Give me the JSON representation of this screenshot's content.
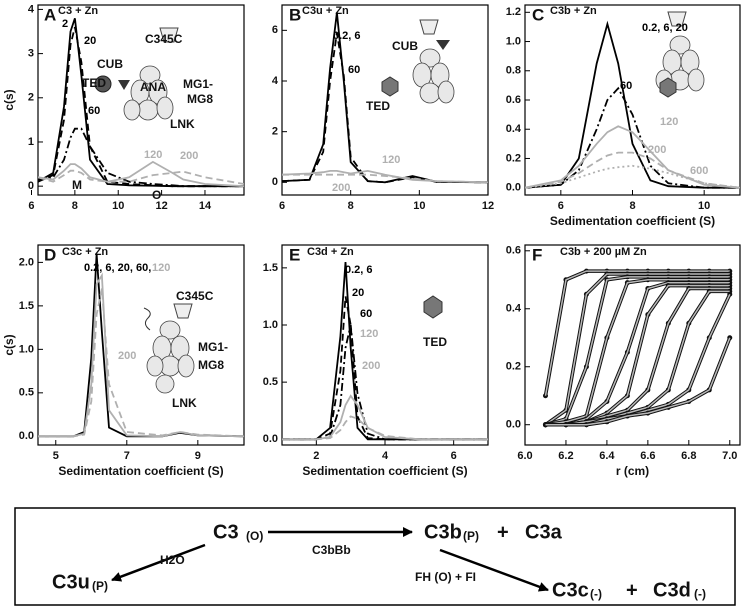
{
  "chart_data": [
    {
      "type": "line",
      "letter": "A",
      "title": "C3 + Zn",
      "y_label": "c(s)",
      "xlim": [
        6.3,
        15.8
      ],
      "xticks": [
        6,
        8,
        10,
        12,
        14
      ],
      "ylim": [
        -0.2,
        4.1
      ],
      "yticks": [
        0,
        1,
        2,
        3,
        4
      ],
      "x": [
        6.3,
        7,
        7.5,
        7.8,
        8,
        8.3,
        8.7,
        9.5,
        10.5,
        11.6,
        12.5,
        13,
        14,
        15.8
      ],
      "series": [
        {
          "name": "2",
          "color": "#000000",
          "style": "solid",
          "values": [
            0.1,
            0.3,
            1.8,
            3.5,
            3.8,
            2.5,
            0.6,
            0.05,
            0.02,
            0.01,
            0,
            0,
            0,
            0
          ]
        },
        {
          "name": "20",
          "color": "#000000",
          "style": "dashed",
          "values": [
            0.1,
            0.25,
            1.5,
            3.2,
            3.6,
            2.8,
            0.9,
            0.1,
            0.05,
            0.02,
            0,
            0,
            0,
            0
          ]
        },
        {
          "name": "60",
          "color": "#000000",
          "style": "dashdot",
          "values": [
            0.15,
            0.2,
            0.6,
            1.1,
            1.3,
            1.3,
            0.9,
            0.3,
            0.1,
            0.05,
            0.02,
            0,
            0,
            0
          ]
        },
        {
          "name": "120",
          "color": "#b0b0b0",
          "style": "solid",
          "values": [
            0.2,
            0.15,
            0.35,
            0.5,
            0.5,
            0.4,
            0.2,
            0.1,
            0.2,
            0.55,
            0.3,
            0.15,
            0.05,
            0
          ]
        },
        {
          "name": "200",
          "color": "#b0b0b0",
          "style": "dashed",
          "values": [
            0.2,
            0.1,
            0.25,
            0.35,
            0.35,
            0.3,
            0.15,
            0.1,
            0.1,
            0.25,
            0.3,
            0.33,
            0.2,
            0.05
          ]
        }
      ],
      "annotations": [
        "CUB",
        "TED",
        "ANA",
        "C345C",
        "MG1-",
        "MG8",
        "LNK",
        "M",
        "O"
      ]
    },
    {
      "type": "line",
      "letter": "B",
      "title": "C3u + Zn",
      "xlim": [
        6,
        12
      ],
      "xticks": [
        6,
        8,
        10,
        12
      ],
      "ylim": [
        -0.5,
        7
      ],
      "yticks": [
        0,
        2,
        4,
        6
      ],
      "x": [
        6,
        6.8,
        7.2,
        7.4,
        7.6,
        7.8,
        8.0,
        8.5,
        9.0,
        9.8,
        10.5,
        12
      ],
      "series": [
        {
          "name": "0.2, 6",
          "color": "#000000",
          "style": "solid",
          "values": [
            0.05,
            0.1,
            1.5,
            4.5,
            6.7,
            4.0,
            0.8,
            0.05,
            0,
            0.25,
            0.02,
            0
          ]
        },
        {
          "name": "60",
          "color": "#000000",
          "style": "dashed",
          "values": [
            0.05,
            0.1,
            1.2,
            4.0,
            5.9,
            4.2,
            1.0,
            0.05,
            0,
            0.2,
            0.02,
            0
          ]
        },
        {
          "name": "120",
          "color": "#b0b0b0",
          "style": "solid",
          "values": [
            0.3,
            0.35,
            0.4,
            0.45,
            0.45,
            0.4,
            0.35,
            0.45,
            0.3,
            0.1,
            0.05,
            0
          ]
        },
        {
          "name": "200",
          "color": "#b0b0b0",
          "style": "dashed",
          "values": [
            0.3,
            0.3,
            0.3,
            0.3,
            0.3,
            0.3,
            0.3,
            0.3,
            0.25,
            0.15,
            0.05,
            0
          ]
        }
      ],
      "annotations": [
        "CUB",
        "TED"
      ]
    },
    {
      "type": "line",
      "letter": "C",
      "title": "C3b + Zn",
      "x_label": "Sedimentation coefficient (S)",
      "xlim": [
        5,
        11
      ],
      "xticks": [
        6,
        8,
        10
      ],
      "ylim": [
        -0.05,
        1.25
      ],
      "yticks": [
        {
          "value": 0,
          "label": "0.0"
        },
        0.2,
        0.4,
        0.6,
        0.8,
        {
          "value": 1,
          "label": "1.0"
        },
        1.2
      ],
      "x": [
        5,
        6,
        6.5,
        7,
        7.3,
        7.6,
        8,
        8.5,
        9,
        10,
        11
      ],
      "series": [
        {
          "name": "0.2, 6, 20",
          "color": "#000000",
          "style": "solid",
          "values": [
            0,
            0.02,
            0.2,
            0.85,
            1.12,
            0.85,
            0.3,
            0.05,
            0.01,
            0,
            0
          ]
        },
        {
          "name": "60",
          "color": "#000000",
          "style": "dashdot",
          "values": [
            0,
            0.02,
            0.12,
            0.4,
            0.6,
            0.68,
            0.5,
            0.15,
            0.03,
            0,
            0
          ]
        },
        {
          "name": "120",
          "color": "#b0b0b0",
          "style": "solid",
          "values": [
            0,
            0.05,
            0.15,
            0.3,
            0.38,
            0.42,
            0.38,
            0.25,
            0.12,
            0.02,
            0
          ]
        },
        {
          "name": "200",
          "color": "#b0b0b0",
          "style": "dashed",
          "values": [
            0,
            0.04,
            0.1,
            0.18,
            0.22,
            0.24,
            0.24,
            0.2,
            0.12,
            0.03,
            0
          ]
        },
        {
          "name": "600",
          "color": "#b0b0b0",
          "style": "dotted",
          "values": [
            0,
            0.03,
            0.07,
            0.11,
            0.13,
            0.14,
            0.15,
            0.13,
            0.1,
            0.03,
            0
          ]
        }
      ]
    },
    {
      "type": "line",
      "letter": "D",
      "title": "C3c + Zn",
      "y_label": "c(s)",
      "x_label": "Sedimentation coefficient (S)",
      "xlim": [
        4.5,
        10.3
      ],
      "xticks": [
        5,
        7,
        9
      ],
      "ylim": [
        -0.1,
        2.2
      ],
      "yticks": [
        {
          "value": 0,
          "label": "0.0"
        },
        0.5,
        {
          "value": 1,
          "label": "1.0"
        },
        1.5,
        {
          "value": 2,
          "label": "2.0"
        }
      ],
      "x": [
        4.5,
        5.5,
        5.8,
        6.0,
        6.15,
        6.3,
        6.5,
        7.0,
        8.0,
        8.5,
        9,
        10.3
      ],
      "series": [
        {
          "name": "0.2, 6, 20, 60,",
          "color": "#000000",
          "style": "solid",
          "values": [
            0,
            0,
            0.05,
            0.9,
            2.1,
            1.2,
            0.1,
            0,
            0,
            0.04,
            0.01,
            0
          ]
        },
        {
          "name": "120",
          "color": "#b0b0b0",
          "style": "solid",
          "values": [
            0,
            0,
            0.03,
            0.6,
            1.75,
            1.85,
            0.3,
            0.01,
            0,
            0.05,
            0.01,
            0
          ]
        },
        {
          "name": "200",
          "color": "#b0b0b0",
          "style": "dashed",
          "values": [
            0,
            0,
            0.02,
            0.4,
            1.4,
            1.7,
            0.6,
            0.05,
            0.01,
            0.05,
            0.02,
            0
          ]
        }
      ],
      "annotations": [
        "C345C",
        "MG1-",
        "MG8",
        "LNK"
      ]
    },
    {
      "type": "line",
      "letter": "E",
      "title": "C3d + Zn",
      "x_label": "Sedimentation coefficient (S)",
      "xlim": [
        1,
        7
      ],
      "xticks": [
        2,
        4,
        6
      ],
      "ylim": [
        -0.05,
        1.7
      ],
      "yticks": [
        {
          "value": 0,
          "label": "0.0"
        },
        0.5,
        {
          "value": 1,
          "label": "1.0"
        },
        1.5
      ],
      "x": [
        1,
        2,
        2.4,
        2.7,
        2.85,
        3.0,
        3.2,
        3.5,
        4,
        5,
        7
      ],
      "series": [
        {
          "name": "0.2, 6",
          "color": "#000000",
          "style": "solid",
          "values": [
            0,
            0,
            0.1,
            0.9,
            1.55,
            0.8,
            0.1,
            0,
            0,
            0,
            0
          ]
        },
        {
          "name": "20",
          "color": "#000000",
          "style": "dashed",
          "values": [
            0,
            0,
            0.05,
            0.6,
            1.25,
            1.0,
            0.2,
            0.01,
            0,
            0,
            0
          ]
        },
        {
          "name": "60",
          "color": "#000000",
          "style": "dashdot",
          "values": [
            0,
            0,
            0.02,
            0.3,
            0.8,
            1.0,
            0.4,
            0.05,
            0,
            0,
            0
          ]
        },
        {
          "name": "120",
          "color": "#b0b0b0",
          "style": "solid",
          "values": [
            0,
            0,
            0.02,
            0.15,
            0.3,
            0.38,
            0.3,
            0.1,
            0.02,
            0,
            0
          ]
        },
        {
          "name": "200",
          "color": "#b0b0b0",
          "style": "dashed",
          "values": [
            0,
            0,
            0.01,
            0.08,
            0.15,
            0.2,
            0.18,
            0.1,
            0.03,
            0,
            0
          ]
        }
      ],
      "annotations": [
        "TED"
      ]
    },
    {
      "type": "scans",
      "letter": "F",
      "title": "C3b + 200 µM Zn",
      "x_label": "r (cm)",
      "xlim": [
        6.0,
        7.05
      ],
      "xticks": [
        {
          "value": 6,
          "label": "6.0"
        },
        6.2,
        6.4,
        6.6,
        6.8,
        {
          "value": 7,
          "label": "7.0"
        }
      ],
      "ylim": [
        -0.07,
        0.62
      ],
      "yticks": [
        {
          "value": 0,
          "label": "0.0"
        },
        0.2,
        0.4,
        0.6
      ],
      "fit_color": "#b8b8b8",
      "x": [
        6.1,
        6.2,
        6.3,
        6.4,
        6.5,
        6.6,
        6.7,
        6.8,
        6.9,
        7.0
      ],
      "series": [
        {
          "color": "#111111",
          "values": [
            0.1,
            0.5,
            0.53,
            0.53,
            0.53,
            0.53,
            0.53,
            0.53,
            0.53,
            0.53
          ]
        },
        {
          "color": "#111111",
          "values": [
            0,
            0.05,
            0.45,
            0.52,
            0.52,
            0.52,
            0.52,
            0.52,
            0.52,
            0.52
          ]
        },
        {
          "color": "#111111",
          "values": [
            0,
            0.02,
            0.2,
            0.5,
            0.51,
            0.51,
            0.51,
            0.51,
            0.51,
            0.51
          ]
        },
        {
          "color": "#111111",
          "values": [
            0,
            0.01,
            0.03,
            0.3,
            0.49,
            0.5,
            0.5,
            0.5,
            0.5,
            0.5
          ]
        },
        {
          "color": "#111111",
          "values": [
            0,
            0,
            0.02,
            0.08,
            0.25,
            0.47,
            0.49,
            0.49,
            0.49,
            0.49
          ]
        },
        {
          "color": "#111111",
          "values": [
            0,
            0,
            0.01,
            0.04,
            0.1,
            0.38,
            0.48,
            0.48,
            0.48,
            0.48
          ]
        },
        {
          "color": "#111111",
          "values": [
            0,
            0,
            0.01,
            0.03,
            0.05,
            0.12,
            0.35,
            0.47,
            0.47,
            0.47
          ]
        },
        {
          "color": "#111111",
          "values": [
            0,
            0,
            0.01,
            0.02,
            0.04,
            0.06,
            0.12,
            0.35,
            0.46,
            0.46
          ]
        },
        {
          "color": "#111111",
          "values": [
            0,
            0,
            0,
            0.02,
            0.03,
            0.05,
            0.07,
            0.12,
            0.3,
            0.45
          ]
        },
        {
          "color": "#111111",
          "values": [
            0,
            0,
            0,
            0.01,
            0.03,
            0.04,
            0.06,
            0.08,
            0.12,
            0.3
          ]
        }
      ]
    }
  ],
  "scheme": {
    "c3": "C3",
    "c3_state": "(O)",
    "enzyme": "C3bBb",
    "c3b": "C3b",
    "c3b_state": "(P)",
    "plus1": "+",
    "c3a": "C3a",
    "hydrolysis": "H2O",
    "c3u": "C3u",
    "c3u_state": "(P)",
    "cleavage": "FH (O) + FI",
    "c3c": "C3c",
    "c3c_state": "(-)",
    "plus2": "+",
    "c3d": "C3d",
    "c3d_state": "(-)"
  }
}
